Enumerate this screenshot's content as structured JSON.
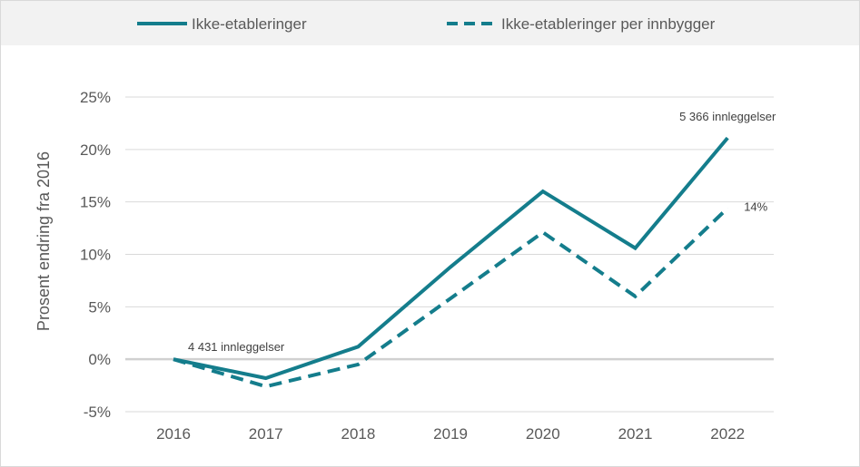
{
  "chart_data": {
    "type": "line",
    "title": "",
    "xlabel": "",
    "ylabel": "Prosent endring fra 2016",
    "x": [
      "2016",
      "2017",
      "2018",
      "2019",
      "2020",
      "2021",
      "2022"
    ],
    "ylim": [
      -5,
      25
    ],
    "yticks": [
      25,
      20,
      15,
      10,
      5,
      0,
      -5
    ],
    "ytick_labels": [
      "25%",
      "20%",
      "15%",
      "10%",
      "5%",
      "0%",
      "-5%"
    ],
    "grid": true,
    "legend_position": "top",
    "series": [
      {
        "name": "Ikke-etableringer",
        "style": "solid",
        "color": "#147d8c",
        "values": [
          0,
          -1.8,
          1.2,
          8.8,
          16.0,
          10.6,
          21.1
        ]
      },
      {
        "name": "Ikke-etableringer per innbygger",
        "style": "dashed",
        "color": "#147d8c",
        "values": [
          0,
          -2.6,
          -0.5,
          5.8,
          12.1,
          6.0,
          14.4
        ]
      }
    ],
    "annotations": [
      {
        "text": "4 431 innleggelser",
        "series": 0,
        "index": 0
      },
      {
        "text": "5 366 innleggelser",
        "series": 0,
        "index": 6
      },
      {
        "text": "14%",
        "series": 1,
        "index": 6
      }
    ]
  }
}
